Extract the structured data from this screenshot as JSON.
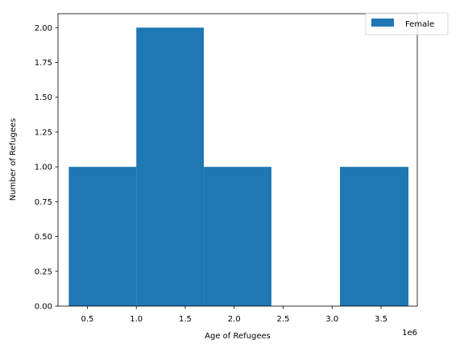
{
  "chart_data": {
    "type": "bar",
    "xlabel": "Age of Refugees",
    "ylabel": "Number of Refugees",
    "x_offset_label": "1e6",
    "x_ticks": [
      0.5,
      1.0,
      1.5,
      2.0,
      2.5,
      3.0,
      3.5
    ],
    "x_tick_labels": [
      "0.5",
      "1.0",
      "1.5",
      "2.0",
      "2.5",
      "3.0",
      "3.5"
    ],
    "y_ticks": [
      0.0,
      0.25,
      0.5,
      0.75,
      1.0,
      1.25,
      1.5,
      1.75,
      2.0
    ],
    "y_tick_labels": [
      "0.00",
      "0.25",
      "0.50",
      "0.75",
      "1.00",
      "1.25",
      "1.50",
      "1.75",
      "2.00"
    ],
    "xlim": [
      0.2,
      3.87
    ],
    "ylim": [
      0,
      2.1
    ],
    "grid": false,
    "legend_position": "top-right",
    "series": [
      {
        "name": "Female",
        "color": "#1f77b4",
        "bins": [
          {
            "x0": 0.31,
            "x1": 1.0,
            "value": 1
          },
          {
            "x0": 1.0,
            "x1": 1.69,
            "value": 2
          },
          {
            "x0": 1.69,
            "x1": 2.38,
            "value": 1
          },
          {
            "x0": 2.38,
            "x1": 3.08,
            "value": 0
          },
          {
            "x0": 3.08,
            "x1": 3.78,
            "value": 1
          }
        ]
      }
    ]
  }
}
